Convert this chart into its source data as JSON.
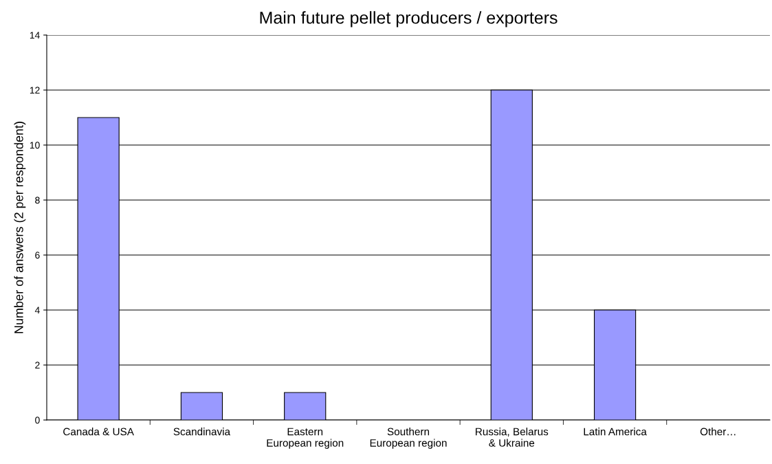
{
  "chart_data": {
    "type": "bar",
    "title": "Main future pellet producers / exporters",
    "ylabel": "Number of answers (2 per respondent)",
    "categories": [
      "Canada & USA",
      "Scandinavia",
      "Eastern\nEuropean region",
      "Southern\nEuropean region",
      "Russia, Belarus\n& Ukraine",
      "Latin America",
      "Other…"
    ],
    "values": [
      11,
      1,
      1,
      0,
      12,
      4,
      0
    ],
    "color": "#9999ff",
    "ylim": [
      0,
      14
    ],
    "yticks": [
      0,
      2,
      4,
      6,
      8,
      10,
      12,
      14
    ],
    "grid": "y",
    "legend": false
  }
}
